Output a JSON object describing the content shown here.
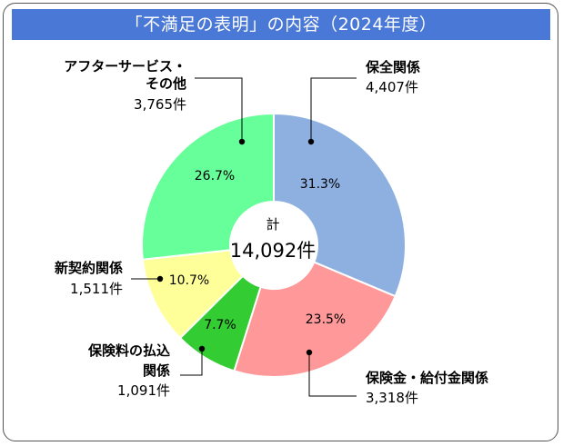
{
  "title": "「不満足の表明」の内容（2024年度）",
  "chart_data": {
    "type": "pie",
    "title": "「不満足の表明」の内容（2024年度）",
    "center_label": "計",
    "center_value": "14,092件",
    "slices": [
      {
        "name": "保全関係",
        "count": "4,407件",
        "percent": "31.3%",
        "value": 31.3,
        "color": "#8eb0e0"
      },
      {
        "name": "保険金・給付金関係",
        "count": "3,318件",
        "percent": "23.5%",
        "value": 23.5,
        "color": "#ff9999"
      },
      {
        "name": "保険料の払込関係",
        "count": "1,091件",
        "percent": "7.7%",
        "value": 7.7,
        "color": "#33cc33"
      },
      {
        "name": "新契約関係",
        "count": "1,511件",
        "percent": "10.7%",
        "value": 10.7,
        "color": "#ffff99"
      },
      {
        "name": "アフターサービス・その他",
        "count": "3,765件",
        "percent": "26.7%",
        "value": 26.7,
        "color": "#66ff99"
      }
    ],
    "slice_labels": {
      "s0": [
        "保全関係"
      ],
      "s1": [
        "保険金・給付金関係"
      ],
      "s2": [
        "保険料の払込",
        "関係"
      ],
      "s3": [
        "新契約関係"
      ],
      "s4": [
        "アフターサービス・",
        "その他"
      ]
    }
  }
}
